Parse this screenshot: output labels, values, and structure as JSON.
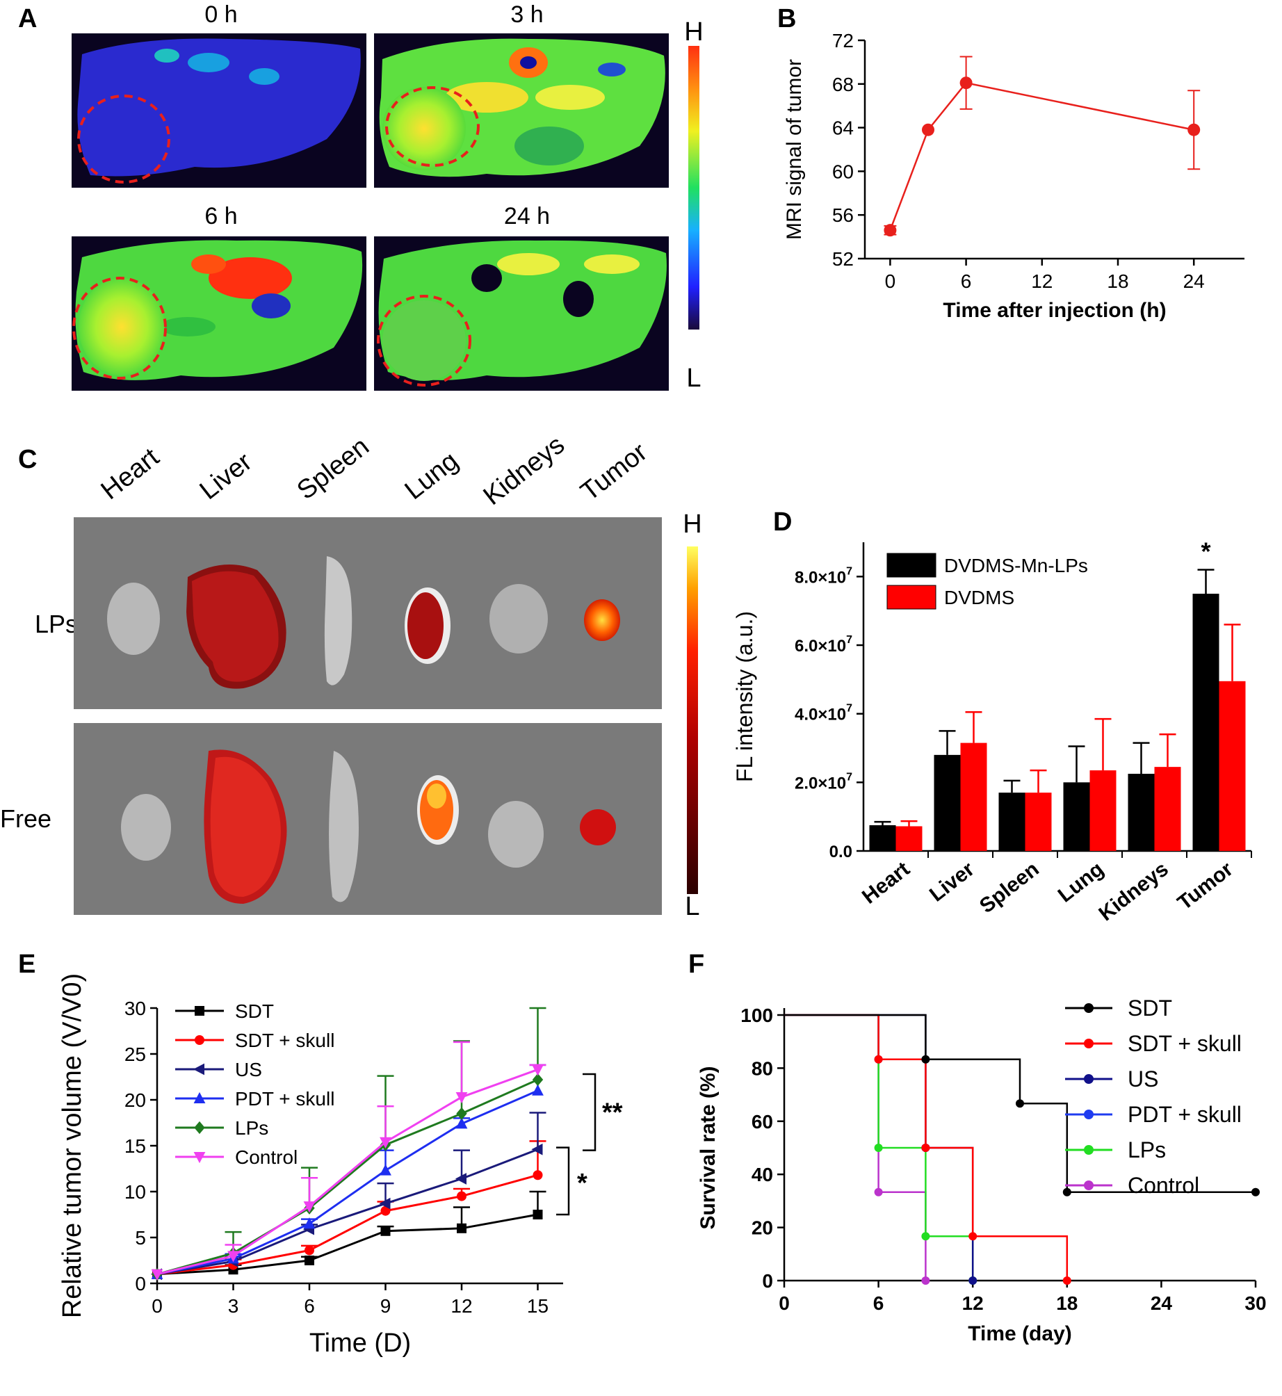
{
  "panels": {
    "A": {
      "label": "A",
      "times": [
        "0 h",
        "3 h",
        "6 h",
        "24 h"
      ],
      "scale_high": "H",
      "scale_low": "L",
      "colors": {
        "roi": "#e8201c"
      }
    },
    "B": {
      "label": "B"
    },
    "C": {
      "label": "C",
      "organs": [
        "Heart",
        "Liver",
        "Spleen",
        "Lung",
        "Kidneys",
        "Tumor"
      ],
      "rows": [
        "LPs",
        "Free"
      ],
      "scale_high": "H",
      "scale_low": "L"
    },
    "D": {
      "label": "D",
      "star": "*"
    },
    "E": {
      "label": "E",
      "sig1": "**",
      "sig2": "*"
    },
    "F": {
      "label": "F"
    }
  },
  "chart_data": [
    {
      "id": "B",
      "type": "line",
      "xlabel": "Time after injection (h)",
      "ylabel": "MRI signal of tumor",
      "x": [
        0,
        3,
        6,
        24
      ],
      "xticks": [
        "0",
        "6",
        "12",
        "18",
        "24"
      ],
      "yticks": [
        "52",
        "56",
        "60",
        "64",
        "68",
        "72"
      ],
      "xlim": [
        -2,
        28
      ],
      "ylim": [
        52,
        72
      ],
      "series": [
        {
          "values": [
            54.6,
            63.8,
            68.1,
            63.8
          ],
          "errors": [
            0.4,
            0,
            2.4,
            3.6
          ],
          "color": "#e8201c"
        }
      ]
    },
    {
      "id": "D",
      "type": "bar",
      "ylabel": "FL intensity (a.u.)",
      "categories": [
        "Heart",
        "Liver",
        "Spleen",
        "Lung",
        "Kidneys",
        "Tumor"
      ],
      "yticks": [
        "0.0",
        "2.0×10",
        "4.0×10",
        "6.0×10",
        "8.0×10"
      ],
      "ytick_exp": "7",
      "ylim": [
        0,
        9.0
      ],
      "legend_position": "top-left",
      "series": [
        {
          "name": "DVDMS-Mn-LPs",
          "color": "#000000",
          "values": [
            0.75,
            2.8,
            1.7,
            2.0,
            2.25,
            7.5
          ],
          "errors": [
            0.1,
            0.7,
            0.35,
            1.05,
            0.9,
            0.7
          ]
        },
        {
          "name": "DVDMS",
          "color": "#ff0000",
          "values": [
            0.72,
            3.15,
            1.7,
            2.35,
            2.45,
            4.95
          ],
          "errors": [
            0.15,
            0.9,
            0.65,
            1.5,
            0.95,
            1.65
          ]
        }
      ]
    },
    {
      "id": "E",
      "type": "line",
      "xlabel": "Time (D)",
      "ylabel": "Relative tumor volume (V/V0)",
      "x": [
        0,
        3,
        6,
        9,
        12,
        15
      ],
      "xticks": [
        "0",
        "3",
        "6",
        "9",
        "12",
        "15"
      ],
      "yticks": [
        "0",
        "5",
        "10",
        "15",
        "20",
        "25",
        "30"
      ],
      "xlim": [
        0,
        16
      ],
      "ylim": [
        0,
        30
      ],
      "legend_position": "top-left",
      "series": [
        {
          "name": "SDT",
          "color": "#000000",
          "marker": "square",
          "values": [
            1.0,
            1.5,
            2.5,
            5.7,
            6.0,
            7.5
          ],
          "errors": [
            0,
            0.5,
            0.4,
            0.5,
            2.3,
            2.5
          ]
        },
        {
          "name": "SDT + skull",
          "color": "#ff0000",
          "marker": "circle",
          "values": [
            1.0,
            2.0,
            3.6,
            7.9,
            9.5,
            11.8
          ],
          "errors": [
            0,
            0.6,
            0.5,
            1.0,
            0.8,
            3.7
          ]
        },
        {
          "name": "US",
          "color": "#1a1a7a",
          "marker": "tri-left",
          "values": [
            1.0,
            2.4,
            5.9,
            8.7,
            11.4,
            14.6
          ],
          "errors": [
            0,
            0.5,
            0.5,
            2.2,
            3.1,
            4.0
          ]
        },
        {
          "name": "PDT + skull",
          "color": "#1e2ef0",
          "marker": "tri-up",
          "values": [
            1.0,
            2.7,
            6.5,
            12.3,
            17.4,
            21.0
          ],
          "errors": [
            0,
            0.5,
            0.5,
            2.2,
            0.6,
            2.8
          ]
        },
        {
          "name": "LPs",
          "color": "#1f7a1f",
          "marker": "diamond",
          "values": [
            1.0,
            3.3,
            8.2,
            15.1,
            18.5,
            22.2
          ],
          "errors": [
            0,
            2.3,
            4.4,
            7.5,
            7.9,
            7.8
          ]
        },
        {
          "name": "Control",
          "color": "#f040f0",
          "marker": "tri-down",
          "values": [
            1.0,
            3.0,
            8.4,
            15.4,
            20.3,
            23.3
          ],
          "errors": [
            0,
            1.2,
            3.1,
            3.9,
            6.0,
            0.5
          ]
        }
      ]
    },
    {
      "id": "F",
      "type": "line",
      "xlabel": "Time (day)",
      "ylabel": "Survival rate (%)",
      "xticks": [
        "0",
        "6",
        "12",
        "18",
        "24",
        "30"
      ],
      "yticks": [
        "0",
        "20",
        "40",
        "60",
        "80",
        "100"
      ],
      "xlim": [
        0,
        30
      ],
      "ylim": [
        0,
        100
      ],
      "legend_position": "top-right",
      "series": [
        {
          "name": "SDT",
          "color": "#000000",
          "x": [
            0,
            9,
            15,
            18,
            30
          ],
          "values": [
            100,
            83.3,
            66.7,
            33.3,
            33.3
          ]
        },
        {
          "name": "SDT + skull",
          "color": "#ff0000",
          "x": [
            0,
            6,
            9,
            12,
            18
          ],
          "values": [
            100,
            83.3,
            50,
            16.7,
            0
          ]
        },
        {
          "name": "US",
          "color": "#10108a",
          "x": [
            0,
            9,
            12
          ],
          "values": [
            100,
            50,
            0
          ]
        },
        {
          "name": "PDT + skull",
          "color": "#1f3cf0",
          "x": [
            0,
            6,
            9
          ],
          "values": [
            100,
            83.3,
            50
          ]
        },
        {
          "name": "LPs",
          "color": "#22dd22",
          "x": [
            0,
            6,
            9,
            12
          ],
          "values": [
            100,
            50,
            16.7,
            0
          ]
        },
        {
          "name": "Control",
          "color": "#bb33cc",
          "x": [
            0,
            6,
            9
          ],
          "values": [
            100,
            33.3,
            0
          ]
        }
      ]
    }
  ]
}
